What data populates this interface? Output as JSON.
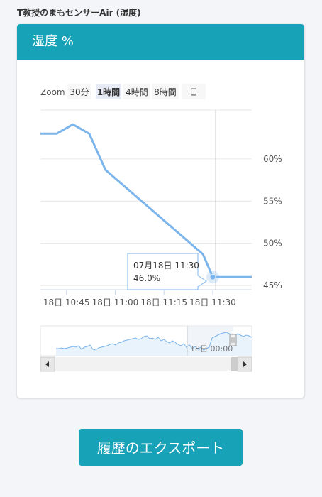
{
  "header": {
    "title": "T教授のまもセンサーAir (湿度)"
  },
  "card": {
    "title": "湿度 %"
  },
  "zoom": {
    "label": "Zoom",
    "options": [
      "30分",
      "1時間",
      "4時間",
      "8時間",
      "日"
    ],
    "selected": "1時間"
  },
  "tooltip": {
    "date": "07月18日 11:30",
    "value": "46.0%"
  },
  "navigator": {
    "label": "18日 00:00"
  },
  "export": {
    "label": "履歴のエクスポート"
  },
  "colors": {
    "accent": "#17a2b8",
    "series": "#7cb5ec"
  },
  "chart_data": {
    "type": "line",
    "x": [
      "10:37",
      "10:42",
      "10:47",
      "10:52",
      "10:57",
      "11:27",
      "11:30",
      "11:32",
      "11:37",
      "11:42"
    ],
    "y": [
      63.0,
      63.0,
      64.1,
      63.0,
      58.7,
      48.7,
      46.0,
      46.0,
      46.0,
      46.0
    ],
    "xlim": [
      "10:37",
      "11:42"
    ],
    "ylim": [
      44.5,
      65.8
    ],
    "x_ticks": [
      "18日 10:45",
      "18日 11:00",
      "18日 11:15",
      "18日 11:30"
    ],
    "x_tick_times": [
      "10:45",
      "11:00",
      "11:15",
      "11:30"
    ],
    "y_ticks": [
      60,
      55,
      50,
      45
    ],
    "y_tick_labels": [
      "60%",
      "55%",
      "50%",
      "45%"
    ],
    "grid": true
  }
}
